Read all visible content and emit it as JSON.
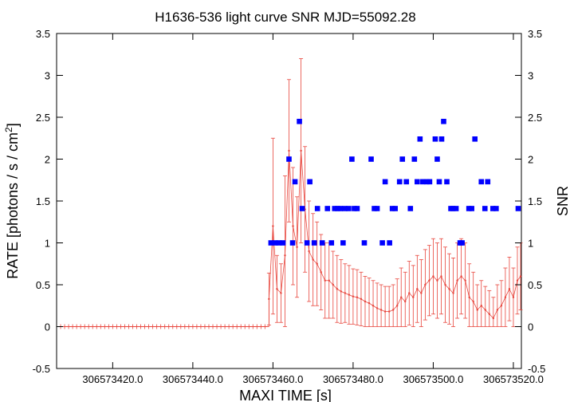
{
  "chart_data": {
    "type": "scatter",
    "title": "H1636-536 light curve  SNR MJD=55092.28",
    "xlabel": "MAXI TIME [s]",
    "ylabel_left_main": "RATE [photons / s / cm",
    "ylabel_left_sup": "2",
    "ylabel_left_end": "]",
    "ylabel_right": "SNR",
    "xlim": [
      306573406,
      306573522
    ],
    "ylim": [
      -0.5,
      3.5
    ],
    "x_ticks": [
      306573420,
      306573440,
      306573460,
      306573480,
      306573500,
      306573520
    ],
    "x_tick_labels": [
      "306573420.0",
      "306573440.0",
      "306573460.0",
      "306573480.0",
      "306573500.0",
      "306573520.0"
    ],
    "y_ticks": [
      -0.5,
      0,
      0.5,
      1,
      1.5,
      2,
      2.5,
      3,
      3.5
    ],
    "y_tick_labels": [
      "-0.5",
      "0",
      "0.5",
      "1",
      "1.5",
      "2",
      "2.5",
      "3",
      "3.5"
    ],
    "grid": false,
    "colors": {
      "rate": "#e8453c",
      "snr": "#0000ff",
      "axis": "#000000"
    },
    "rate_series": {
      "x_start": 306573406,
      "x_end": 306573522,
      "zero_until": 306573459,
      "bins": [
        [
          306573459.0,
          0.33,
          0.31
        ],
        [
          306573460.0,
          1.2,
          1.05
        ],
        [
          306573461.0,
          0.45,
          0.4
        ],
        [
          306573462.0,
          0.4,
          0.35
        ],
        [
          306573463.0,
          0.85,
          0.95
        ],
        [
          306573464.0,
          2.1,
          0.85
        ],
        [
          306573465.0,
          1.2,
          0.7
        ],
        [
          306573466.0,
          0.95,
          0.6
        ],
        [
          306573467.0,
          2.1,
          1.1
        ],
        [
          306573468.0,
          1.4,
          0.75
        ],
        [
          306573469.0,
          0.9,
          0.6
        ],
        [
          306573470.0,
          0.8,
          0.55
        ],
        [
          306573471.0,
          0.75,
          0.5
        ],
        [
          306573472.0,
          0.65,
          0.45
        ],
        [
          306573473.0,
          0.55,
          0.45
        ],
        [
          306573474.0,
          0.55,
          0.45
        ],
        [
          306573475.0,
          0.5,
          0.4
        ],
        [
          306573476.0,
          0.45,
          0.4
        ],
        [
          306573477.0,
          0.42,
          0.38
        ],
        [
          306573478.0,
          0.4,
          0.35
        ],
        [
          306573479.0,
          0.38,
          0.35
        ],
        [
          306573480.0,
          0.36,
          0.33
        ],
        [
          306573481.0,
          0.35,
          0.33
        ],
        [
          306573482.0,
          0.33,
          0.32
        ],
        [
          306573483.0,
          0.3,
          0.3
        ],
        [
          306573484.0,
          0.28,
          0.3
        ],
        [
          306573485.0,
          0.25,
          0.3
        ],
        [
          306573486.0,
          0.22,
          0.3
        ],
        [
          306573487.0,
          0.2,
          0.3
        ],
        [
          306573488.0,
          0.18,
          0.3
        ],
        [
          306573489.0,
          0.18,
          0.3
        ],
        [
          306573490.0,
          0.2,
          0.3
        ],
        [
          306573491.0,
          0.25,
          0.32
        ],
        [
          306573492.0,
          0.35,
          0.35
        ],
        [
          306573493.0,
          0.3,
          0.35
        ],
        [
          306573494.0,
          0.4,
          0.38
        ],
        [
          306573495.0,
          0.35,
          0.38
        ],
        [
          306573496.0,
          0.45,
          0.4
        ],
        [
          306573497.0,
          0.4,
          0.4
        ],
        [
          306573498.0,
          0.5,
          0.42
        ],
        [
          306573499.0,
          0.55,
          0.42
        ],
        [
          306573500.0,
          0.6,
          0.45
        ],
        [
          306573501.0,
          0.55,
          0.45
        ],
        [
          306573502.0,
          0.6,
          0.45
        ],
        [
          306573503.0,
          0.5,
          0.45
        ],
        [
          306573504.0,
          0.45,
          0.42
        ],
        [
          306573505.0,
          0.4,
          0.42
        ],
        [
          306573506.0,
          0.55,
          0.45
        ],
        [
          306573507.0,
          0.6,
          0.45
        ],
        [
          306573508.0,
          0.55,
          0.45
        ],
        [
          306573509.0,
          0.35,
          0.4
        ],
        [
          306573510.0,
          0.3,
          0.35
        ],
        [
          306573511.0,
          0.2,
          0.3
        ],
        [
          306573512.0,
          0.25,
          0.3
        ],
        [
          306573513.0,
          0.2,
          0.28
        ],
        [
          306573514.0,
          0.15,
          0.28
        ],
        [
          306573515.0,
          0.1,
          0.25
        ],
        [
          306573516.0,
          0.2,
          0.3
        ],
        [
          306573517.0,
          0.25,
          0.3
        ],
        [
          306573518.0,
          0.35,
          0.35
        ],
        [
          306573519.0,
          0.45,
          0.38
        ],
        [
          306573520.0,
          0.35,
          0.35
        ],
        [
          306573521.0,
          0.55,
          0.4
        ],
        [
          306573521.8,
          0.6,
          0.4
        ]
      ]
    },
    "snr_points": [
      [
        306573459.5,
        1.0
      ],
      [
        306573460.5,
        1.0
      ],
      [
        306573461.5,
        1.0
      ],
      [
        306573462.5,
        1.0
      ],
      [
        306573464.0,
        2.0
      ],
      [
        306573464.9,
        1.0
      ],
      [
        306573465.5,
        1.73
      ],
      [
        306573466.6,
        2.45
      ],
      [
        306573467.3,
        1.41
      ],
      [
        306573468.5,
        1.0
      ],
      [
        306573469.2,
        1.73
      ],
      [
        306573470.3,
        1.0
      ],
      [
        306573471.1,
        1.41
      ],
      [
        306573472.3,
        1.0
      ],
      [
        306573473.6,
        1.41
      ],
      [
        306573474.6,
        1.0
      ],
      [
        306573475.4,
        1.41
      ],
      [
        306573476.1,
        1.41
      ],
      [
        306573476.8,
        1.41
      ],
      [
        306573477.5,
        1.0
      ],
      [
        306573477.9,
        1.41
      ],
      [
        306573478.9,
        1.41
      ],
      [
        306573479.7,
        2.0
      ],
      [
        306573480.3,
        1.41
      ],
      [
        306573481.0,
        1.41
      ],
      [
        306573482.8,
        1.0
      ],
      [
        306573484.5,
        2.0
      ],
      [
        306573485.3,
        1.41
      ],
      [
        306573486.0,
        1.41
      ],
      [
        306573487.3,
        1.0
      ],
      [
        306573488.0,
        1.73
      ],
      [
        306573489.1,
        1.0
      ],
      [
        306573489.8,
        1.41
      ],
      [
        306573490.5,
        1.41
      ],
      [
        306573491.6,
        1.73
      ],
      [
        306573492.3,
        2.0
      ],
      [
        306573493.3,
        1.73
      ],
      [
        306573494.3,
        1.41
      ],
      [
        306573495.3,
        2.0
      ],
      [
        306573496.0,
        1.73
      ],
      [
        306573496.7,
        2.24
      ],
      [
        306573497.4,
        1.73
      ],
      [
        306573498.4,
        1.73
      ],
      [
        306573499.1,
        1.73
      ],
      [
        306573500.5,
        2.24
      ],
      [
        306573501.0,
        2.0
      ],
      [
        306573501.5,
        1.73
      ],
      [
        306573502.1,
        2.24
      ],
      [
        306573502.6,
        2.45
      ],
      [
        306573503.4,
        1.73
      ],
      [
        306573504.4,
        1.41
      ],
      [
        306573504.9,
        1.41
      ],
      [
        306573505.7,
        1.41
      ],
      [
        306573506.7,
        1.0
      ],
      [
        306573507.2,
        1.0
      ],
      [
        306573508.9,
        1.41
      ],
      [
        306573509.6,
        1.41
      ],
      [
        306573510.4,
        2.24
      ],
      [
        306573512.0,
        1.73
      ],
      [
        306573512.9,
        1.41
      ],
      [
        306573513.6,
        1.73
      ],
      [
        306573514.9,
        1.41
      ],
      [
        306573515.7,
        1.41
      ],
      [
        306573521.2,
        1.41
      ]
    ]
  }
}
